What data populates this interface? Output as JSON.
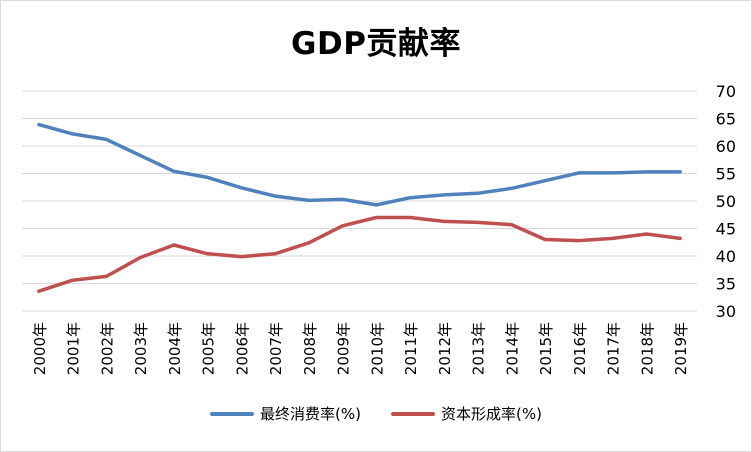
{
  "chart_data": {
    "type": "line",
    "title": "GDP贡献率",
    "categories": [
      "2000年",
      "2001年",
      "2002年",
      "2003年",
      "2004年",
      "2005年",
      "2006年",
      "2007年",
      "2008年",
      "2009年",
      "2010年",
      "2011年",
      "2012年",
      "2013年",
      "2014年",
      "2015年",
      "2016年",
      "2017年",
      "2018年",
      "2019年"
    ],
    "series": [
      {
        "name": "最终消费率(%)",
        "color": "#4f81bd",
        "values": [
          63.9,
          62.2,
          61.2,
          58.3,
          55.4,
          54.3,
          52.4,
          50.9,
          50.1,
          50.3,
          49.3,
          50.6,
          51.1,
          51.4,
          52.3,
          53.7,
          55.1,
          55.1,
          55.3,
          55.3
        ]
      },
      {
        "name": "资本形成率(%)",
        "color": "#c0504d",
        "values": [
          33.6,
          35.6,
          36.3,
          39.7,
          42.0,
          40.4,
          39.9,
          40.4,
          42.4,
          45.5,
          47.0,
          47.0,
          46.3,
          46.1,
          45.7,
          43.0,
          42.8,
          43.2,
          44.0,
          43.2
        ]
      }
    ],
    "y_axis": {
      "position": "right",
      "min": 30,
      "max": 70,
      "ticks": [
        30,
        35,
        40,
        45,
        50,
        55,
        60,
        65,
        70
      ]
    },
    "grid": true,
    "legend_position": "bottom"
  }
}
